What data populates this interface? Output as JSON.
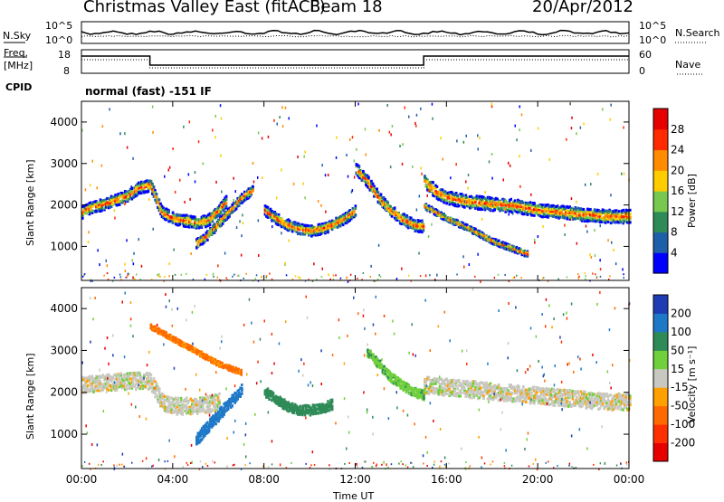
{
  "header": {
    "station": "Christmas Valley East (fitACF)",
    "beam": "Beam 18",
    "date": "20/Apr/2012"
  },
  "labels": {
    "nsky": "N.Sky",
    "nsearch": "N.Search",
    "freq": "Freq.",
    "freq_unit": "[MHz]",
    "nave": "Nave",
    "cpid": "CPID",
    "cpid_value": "normal (fast) -151 IF"
  },
  "noise_axis": {
    "left_ticks": [
      "10^5",
      "10^0"
    ],
    "right_ticks": [
      "10^5",
      "10^0"
    ]
  },
  "freq_axis": {
    "left_ticks": [
      "18",
      "8"
    ],
    "right_ticks": [
      "60",
      "0"
    ]
  },
  "chart_data": [
    {
      "type": "heatmap",
      "name": "power",
      "ylabel": "Slant Range [km]",
      "ylim": [
        180,
        4500
      ],
      "y_ticks": [
        1000,
        2000,
        3000,
        4000
      ],
      "xlim": [
        0,
        24
      ],
      "x_ticks": [
        0,
        4,
        8,
        12,
        16,
        20,
        24
      ],
      "colorbar": {
        "label": "Power [dB]",
        "ticks": [
          "4",
          "8",
          "12",
          "16",
          "20",
          "24",
          "28"
        ],
        "colors": [
          "#0000ff",
          "#1e5faa",
          "#2e8b57",
          "#78c850",
          "#ffcc00",
          "#ff8c00",
          "#ff2a00",
          "#e60000"
        ]
      },
      "echo_bands": [
        {
          "t": [
            0,
            0.3,
            1,
            2,
            2.5,
            3,
            3.5,
            4,
            5,
            5.5,
            6,
            6.3
          ],
          "r": [
            1850,
            1950,
            2050,
            2250,
            2450,
            2500,
            1850,
            1700,
            1600,
            1650,
            1900,
            2100
          ],
          "hw": 140
        },
        {
          "t": [
            5,
            5.5,
            6,
            6.5,
            7,
            7.5
          ],
          "r": [
            1100,
            1300,
            1600,
            1900,
            2200,
            2400
          ],
          "hw": 110
        },
        {
          "t": [
            8,
            8.5,
            9,
            9.5,
            10,
            10.5,
            11,
            11.5,
            12
          ],
          "r": [
            1900,
            1700,
            1550,
            1450,
            1400,
            1450,
            1550,
            1700,
            1900
          ],
          "hw": 130
        },
        {
          "t": [
            12,
            12.5,
            13,
            13.5,
            14,
            14.5,
            15
          ],
          "r": [
            2900,
            2600,
            2200,
            1900,
            1700,
            1550,
            1500
          ],
          "hw": 140
        },
        {
          "t": [
            15,
            15.5,
            16,
            17,
            18,
            19,
            20,
            21,
            22,
            23,
            24
          ],
          "r": [
            2600,
            2350,
            2200,
            2100,
            2050,
            2000,
            1900,
            1850,
            1800,
            1750,
            1750
          ],
          "hw": 160
        },
        {
          "t": [
            15,
            16,
            17,
            18,
            19,
            19.5
          ],
          "r": [
            2000,
            1700,
            1450,
            1150,
            950,
            850
          ],
          "hw": 70
        }
      ]
    },
    {
      "type": "heatmap",
      "name": "velocity",
      "ylabel": "Slant Range [km]",
      "xlabel": "Time UT",
      "x_ticklabels": [
        "00:00",
        "04:00",
        "08:00",
        "12:00",
        "16:00",
        "20:00",
        "00:00"
      ],
      "ylim": [
        180,
        4500
      ],
      "y_ticks": [
        1000,
        2000,
        3000,
        4000
      ],
      "xlim": [
        0,
        24
      ],
      "colorbar": {
        "label": "Velocity [m s⁻¹]",
        "ticks": [
          "200",
          "100",
          "50",
          "15",
          "-15",
          "-50",
          "-100",
          "-200"
        ],
        "colors": [
          "#1e3cb4",
          "#1e78c8",
          "#2e8b57",
          "#6fcf3c",
          "#c8c8c0",
          "#ffa000",
          "#ff6a00",
          "#ff3000",
          "#e60000"
        ]
      },
      "echo_bands": [
        {
          "t": [
            0,
            1,
            2,
            3,
            3.5,
            4,
            5,
            6
          ],
          "r": [
            2200,
            2250,
            2300,
            2300,
            1800,
            1700,
            1700,
            1800
          ],
          "hw": 200,
          "v": 0
        },
        {
          "t": [
            5,
            5.5,
            6,
            6.5,
            7
          ],
          "r": [
            900,
            1200,
            1500,
            1800,
            2100
          ],
          "hw": 140,
          "v": 150
        },
        {
          "t": [
            8,
            8.5,
            9,
            9.5,
            10,
            10.5,
            11
          ],
          "r": [
            2050,
            1850,
            1700,
            1600,
            1600,
            1650,
            1750
          ],
          "hw": 120,
          "v": 70
        },
        {
          "t": [
            12.5,
            13,
            13.5,
            14,
            14.5,
            15
          ],
          "r": [
            3000,
            2700,
            2400,
            2200,
            2050,
            1950
          ],
          "hw": 110,
          "v": 40
        },
        {
          "t": [
            15,
            16,
            17,
            18,
            19,
            20,
            21,
            22,
            23,
            24
          ],
          "r": [
            2200,
            2150,
            2100,
            2050,
            2000,
            1950,
            1900,
            1850,
            1800,
            1800
          ],
          "hw": 200,
          "v": 0
        },
        {
          "t": [
            3,
            4,
            5,
            6,
            7
          ],
          "r": [
            3600,
            3300,
            3000,
            2700,
            2500
          ],
          "hw": 60,
          "v": -60
        }
      ]
    }
  ]
}
